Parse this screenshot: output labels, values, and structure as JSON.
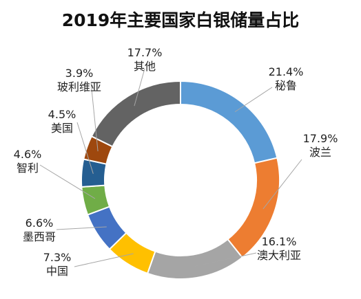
{
  "chart_data": {
    "type": "donut",
    "title": "2019年主要国家白银储量占比",
    "slices": [
      {
        "label": "秘鲁",
        "percent_label": "21.4%",
        "value": 21.4,
        "color": "#5B9BD5"
      },
      {
        "label": "波兰",
        "percent_label": "17.9%",
        "value": 17.9,
        "color": "#ED7D31"
      },
      {
        "label": "澳大利亚",
        "percent_label": "16.1%",
        "value": 16.1,
        "color": "#A5A5A5"
      },
      {
        "label": "中国",
        "percent_label": "7.3%",
        "value": 7.3,
        "color": "#FFC000"
      },
      {
        "label": "墨西哥",
        "percent_label": "6.6%",
        "value": 6.6,
        "color": "#4472C4"
      },
      {
        "label": "智利",
        "percent_label": "4.6%",
        "value": 4.6,
        "color": "#70AD47"
      },
      {
        "label": "美国",
        "percent_label": "4.5%",
        "value": 4.5,
        "color": "#255E91"
      },
      {
        "label": "玻利维亚",
        "percent_label": "3.9%",
        "value": 3.9,
        "color": "#9E480E"
      },
      {
        "label": "其他",
        "percent_label": "17.7%",
        "value": 17.7,
        "color": "#636363"
      }
    ]
  }
}
